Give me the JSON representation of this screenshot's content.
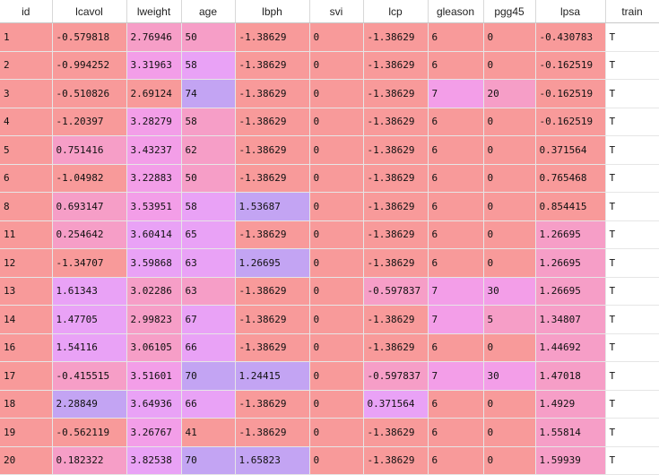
{
  "palette": {
    "c0": "#f89a9a",
    "c1": "#f69ec7",
    "c2": "#f39ee8",
    "c3": "#e9a2f6",
    "c4": "#c3a4f3",
    "white": "#ffffff"
  },
  "table": {
    "columns": [
      {
        "key": "id",
        "label": "id",
        "width": 58
      },
      {
        "key": "lcavol",
        "label": "lcavol",
        "width": 83
      },
      {
        "key": "lweight",
        "label": "lweight",
        "width": 61
      },
      {
        "key": "age",
        "label": "age",
        "width": 60
      },
      {
        "key": "lbph",
        "label": "lbph",
        "width": 83
      },
      {
        "key": "svi",
        "label": "svi",
        "width": 60
      },
      {
        "key": "lcp",
        "label": "lcp",
        "width": 72
      },
      {
        "key": "gleason",
        "label": "gleason",
        "width": 62
      },
      {
        "key": "pgg45",
        "label": "pgg45",
        "width": 58
      },
      {
        "key": "lpsa",
        "label": "lpsa",
        "width": 78
      },
      {
        "key": "train",
        "label": "train",
        "width": 60
      }
    ],
    "rows": [
      {
        "cells": [
          "1",
          "-0.579818",
          "2.76946",
          "50",
          "-1.38629",
          "0",
          "-1.38629",
          "6",
          "0",
          "-0.430783",
          "T"
        ],
        "shades": [
          "c0",
          "c0",
          "c1",
          "c1",
          "c0",
          "c0",
          "c0",
          "c0",
          "c0",
          "c0",
          "white"
        ]
      },
      {
        "cells": [
          "2",
          "-0.994252",
          "3.31963",
          "58",
          "-1.38629",
          "0",
          "-1.38629",
          "6",
          "0",
          "-0.162519",
          "T"
        ],
        "shades": [
          "c0",
          "c0",
          "c2",
          "c3",
          "c0",
          "c0",
          "c0",
          "c0",
          "c0",
          "c0",
          "white"
        ]
      },
      {
        "cells": [
          "3",
          "-0.510826",
          "2.69124",
          "74",
          "-1.38629",
          "0",
          "-1.38629",
          "7",
          "20",
          "-0.162519",
          "T"
        ],
        "shades": [
          "c0",
          "c0",
          "c0",
          "c4",
          "c0",
          "c0",
          "c0",
          "c2",
          "c1",
          "c0",
          "white"
        ]
      },
      {
        "cells": [
          "4",
          "-1.20397",
          "3.28279",
          "58",
          "-1.38629",
          "0",
          "-1.38629",
          "6",
          "0",
          "-0.162519",
          "T"
        ],
        "shades": [
          "c0",
          "c0",
          "c2",
          "c1",
          "c0",
          "c0",
          "c0",
          "c0",
          "c0",
          "c0",
          "white"
        ]
      },
      {
        "cells": [
          "5",
          "0.751416",
          "3.43237",
          "62",
          "-1.38629",
          "0",
          "-1.38629",
          "6",
          "0",
          "0.371564",
          "T"
        ],
        "shades": [
          "c0",
          "c1",
          "c2",
          "c1",
          "c0",
          "c0",
          "c0",
          "c0",
          "c0",
          "c0",
          "white"
        ]
      },
      {
        "cells": [
          "6",
          "-1.04982",
          "3.22883",
          "50",
          "-1.38629",
          "0",
          "-1.38629",
          "6",
          "0",
          "0.765468",
          "T"
        ],
        "shades": [
          "c0",
          "c0",
          "c2",
          "c1",
          "c0",
          "c0",
          "c0",
          "c0",
          "c0",
          "c0",
          "white"
        ]
      },
      {
        "cells": [
          "8",
          "0.693147",
          "3.53951",
          "58",
          "1.53687",
          "0",
          "-1.38629",
          "6",
          "0",
          "0.854415",
          "T"
        ],
        "shades": [
          "c0",
          "c1",
          "c2",
          "c3",
          "c4",
          "c0",
          "c0",
          "c0",
          "c0",
          "c0",
          "white"
        ]
      },
      {
        "cells": [
          "11",
          "0.254642",
          "3.60414",
          "65",
          "-1.38629",
          "0",
          "-1.38629",
          "6",
          "0",
          "1.26695",
          "T"
        ],
        "shades": [
          "c0",
          "c1",
          "c3",
          "c3",
          "c0",
          "c0",
          "c0",
          "c0",
          "c0",
          "c1",
          "white"
        ]
      },
      {
        "cells": [
          "12",
          "-1.34707",
          "3.59868",
          "63",
          "1.26695",
          "0",
          "-1.38629",
          "6",
          "0",
          "1.26695",
          "T"
        ],
        "shades": [
          "c0",
          "c0",
          "c3",
          "c3",
          "c4",
          "c0",
          "c0",
          "c0",
          "c0",
          "c1",
          "white"
        ]
      },
      {
        "cells": [
          "13",
          "1.61343",
          "3.02286",
          "63",
          "-1.38629",
          "0",
          "-0.597837",
          "7",
          "30",
          "1.26695",
          "T"
        ],
        "shades": [
          "c0",
          "c3",
          "c1",
          "c1",
          "c0",
          "c0",
          "c1",
          "c2",
          "c2",
          "c1",
          "white"
        ]
      },
      {
        "cells": [
          "14",
          "1.47705",
          "2.99823",
          "67",
          "-1.38629",
          "0",
          "-1.38629",
          "7",
          "5",
          "1.34807",
          "T"
        ],
        "shades": [
          "c0",
          "c3",
          "c1",
          "c3",
          "c0",
          "c0",
          "c0",
          "c2",
          "c1",
          "c1",
          "white"
        ]
      },
      {
        "cells": [
          "16",
          "1.54116",
          "3.06105",
          "66",
          "-1.38629",
          "0",
          "-1.38629",
          "6",
          "0",
          "1.44692",
          "T"
        ],
        "shades": [
          "c0",
          "c3",
          "c1",
          "c3",
          "c0",
          "c0",
          "c0",
          "c0",
          "c0",
          "c1",
          "white"
        ]
      },
      {
        "cells": [
          "17",
          "-0.415515",
          "3.51601",
          "70",
          "1.24415",
          "0",
          "-0.597837",
          "7",
          "30",
          "1.47018",
          "T"
        ],
        "shades": [
          "c0",
          "c1",
          "c2",
          "c4",
          "c4",
          "c0",
          "c1",
          "c2",
          "c2",
          "c1",
          "white"
        ]
      },
      {
        "cells": [
          "18",
          "2.28849",
          "3.64936",
          "66",
          "-1.38629",
          "0",
          "0.371564",
          "6",
          "0",
          "1.4929",
          "T"
        ],
        "shades": [
          "c0",
          "c4",
          "c3",
          "c3",
          "c0",
          "c0",
          "c3",
          "c0",
          "c0",
          "c1",
          "white"
        ]
      },
      {
        "cells": [
          "19",
          "-0.562119",
          "3.26767",
          "41",
          "-1.38629",
          "0",
          "-1.38629",
          "6",
          "0",
          "1.55814",
          "T"
        ],
        "shades": [
          "c0",
          "c0",
          "c2",
          "c0",
          "c0",
          "c0",
          "c0",
          "c0",
          "c0",
          "c1",
          "white"
        ]
      },
      {
        "cells": [
          "20",
          "0.182322",
          "3.82538",
          "70",
          "1.65823",
          "0",
          "-1.38629",
          "6",
          "0",
          "1.59939",
          "T"
        ],
        "shades": [
          "c0",
          "c1",
          "c3",
          "c4",
          "c4",
          "c0",
          "c0",
          "c0",
          "c0",
          "c1",
          "white"
        ]
      }
    ]
  }
}
